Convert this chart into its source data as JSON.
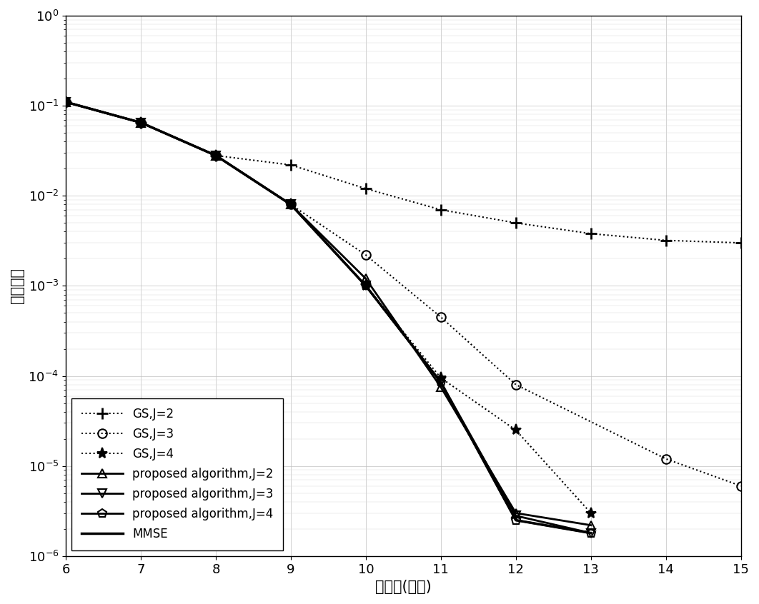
{
  "snr": [
    6,
    7,
    8,
    9,
    10,
    11,
    12,
    13,
    14,
    15
  ],
  "GS_J2": [
    0.11,
    0.065,
    0.028,
    0.022,
    0.012,
    0.007,
    0.005,
    0.0038,
    0.0032,
    0.003
  ],
  "GS_J3": [
    0.11,
    0.065,
    0.028,
    0.008,
    0.0022,
    0.00045,
    8e-05,
    null,
    1.2e-05,
    6e-06
  ],
  "GS_J4": [
    0.11,
    0.065,
    0.028,
    0.008,
    0.001,
    9.5e-05,
    2.5e-05,
    3e-06,
    null,
    null
  ],
  "prop_J2": [
    0.11,
    0.065,
    0.028,
    0.008,
    0.0012,
    7.5e-05,
    3e-06,
    2.2e-06,
    null,
    null
  ],
  "prop_J3": [
    0.11,
    0.065,
    0.028,
    0.008,
    0.001,
    8.5e-05,
    2.8e-06,
    1.8e-06,
    null,
    null
  ],
  "prop_J4": [
    0.11,
    0.065,
    0.028,
    0.008,
    0.001,
    8.5e-05,
    2.5e-06,
    1.8e-06,
    null,
    null
  ],
  "MMSE": [
    0.11,
    0.065,
    0.028,
    0.008,
    0.001,
    8.5e-05,
    2.5e-06,
    1.8e-06,
    null,
    null
  ],
  "xlabel": "信噪比(分贝)",
  "ylabel": "误比特率",
  "xlim": [
    6,
    15
  ],
  "ylim_low": 1e-06,
  "ylim_high": 1.0,
  "legend_labels": [
    "GS,J=2",
    "GS,J=3",
    "GS,J=4",
    "proposed algorithm,J=2",
    "proposed algorithm,J=3",
    "proposed algorithm,J=4",
    "MMSE"
  ]
}
